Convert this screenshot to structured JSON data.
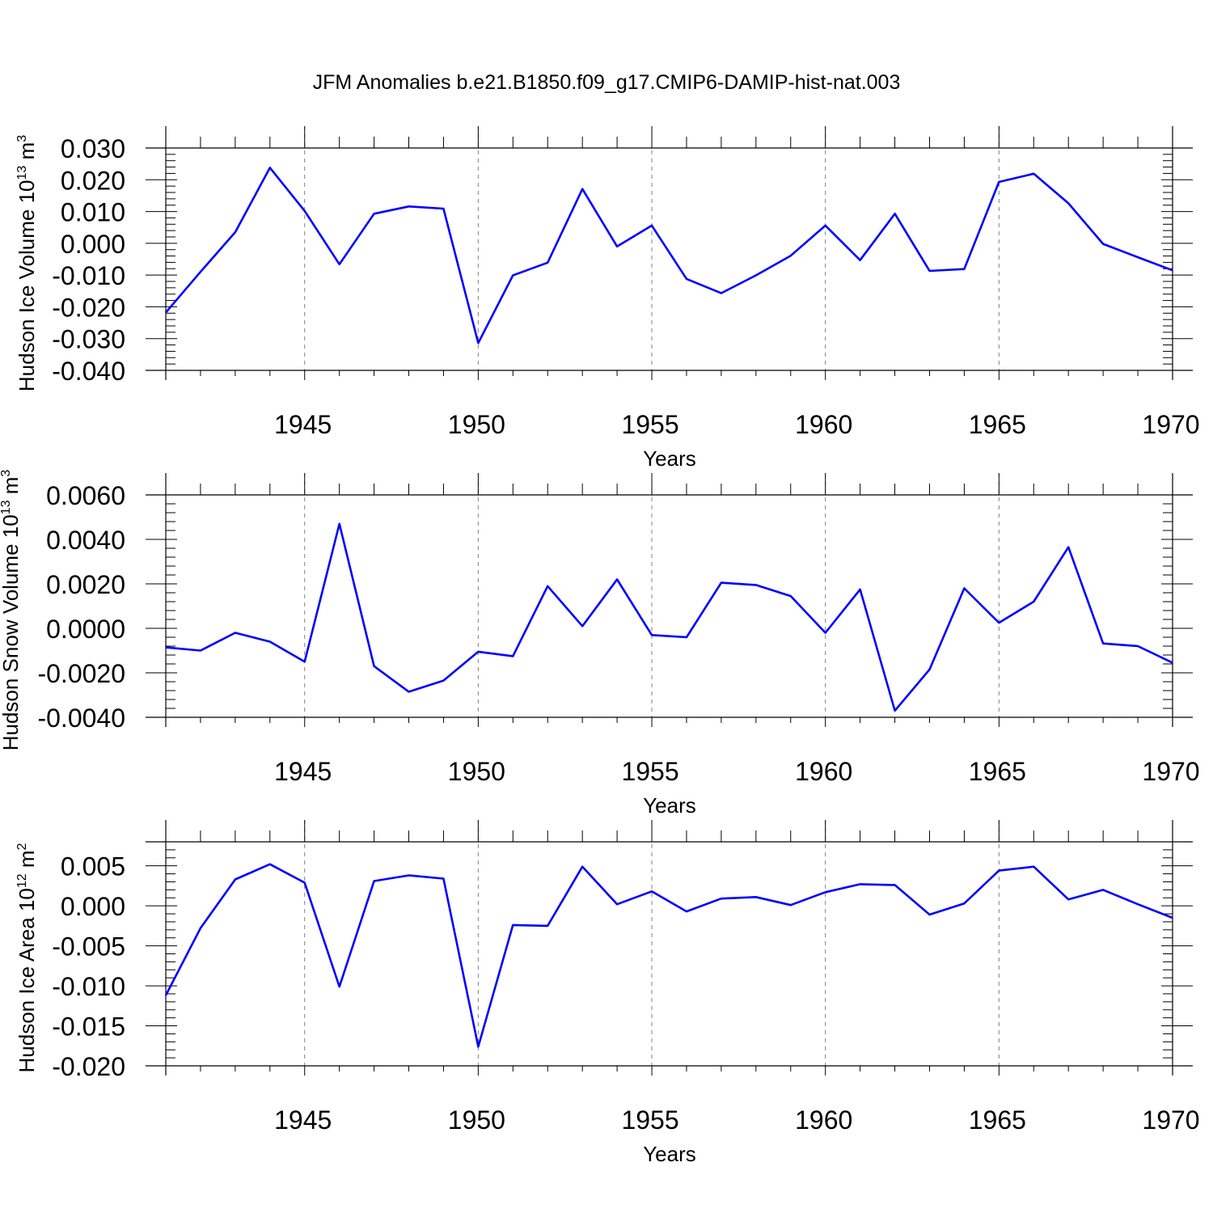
{
  "title": "JFM Anomalies b.e21.B1850.f09_g17.CMIP6-DAMIP-hist-nat.003",
  "colors": {
    "line": "#0000ff",
    "axis": "#000000",
    "grid": "#808080",
    "background": "#ffffff"
  },
  "chart_data": [
    {
      "type": "line",
      "title": "JFM Anomalies b.e21.B1850.f09_g17.CMIP6-DAMIP-hist-nat.003",
      "ylabel": "Hudson Ice Volume 10",
      "ylabel_exponent": "13",
      "ylabel_unit": " m",
      "ylabel_unit_exponent": "3",
      "xlabel": "Years",
      "xlim": [
        1941,
        1970
      ],
      "ylim": [
        -0.04,
        0.03
      ],
      "yticks": [
        -0.04,
        -0.03,
        -0.02,
        -0.01,
        0.0,
        0.01,
        0.02,
        0.03
      ],
      "ytick_labels": [
        "-0.040",
        "-0.030",
        "-0.020",
        "-0.010",
        "0.000",
        "0.010",
        "0.020",
        "0.030"
      ],
      "xticks": [
        1945,
        1950,
        1955,
        1960,
        1965,
        1970
      ],
      "xtick_labels": [
        "1945",
        "1950",
        "1955",
        "1960",
        "1965",
        "1970"
      ],
      "grid": "vertical dashed at major x ticks",
      "series": [
        {
          "name": "Hudson Ice Volume",
          "x": [
            1941,
            1942,
            1943,
            1944,
            1945,
            1946,
            1947,
            1948,
            1949,
            1950,
            1951,
            1952,
            1953,
            1954,
            1955,
            1956,
            1957,
            1958,
            1959,
            1960,
            1961,
            1962,
            1963,
            1964,
            1965,
            1966,
            1967,
            1968,
            1969,
            1970
          ],
          "values": [
            -0.0218,
            -0.009,
            0.0035,
            0.0238,
            0.0102,
            -0.0066,
            0.0093,
            0.0116,
            0.0109,
            -0.0314,
            -0.0101,
            -0.0061,
            0.0171,
            -0.001,
            0.0056,
            -0.0112,
            -0.0157,
            -0.0101,
            -0.0039,
            0.0056,
            -0.0053,
            0.0093,
            -0.0087,
            -0.0081,
            0.0193,
            0.0219,
            0.0126,
            -0.0002,
            -0.0044,
            -0.0085
          ]
        }
      ]
    },
    {
      "type": "line",
      "ylabel": "Hudson Snow Volume 10",
      "ylabel_exponent": "13",
      "ylabel_unit": " m",
      "ylabel_unit_exponent": "3",
      "xlabel": "Years",
      "xlim": [
        1941,
        1970
      ],
      "ylim": [
        -0.004,
        0.006
      ],
      "yticks": [
        -0.004,
        -0.002,
        0.0,
        0.002,
        0.004,
        0.006
      ],
      "ytick_labels": [
        "-0.0040",
        "-0.0020",
        "0.0000",
        "0.0020",
        "0.0040",
        "0.0060"
      ],
      "xticks": [
        1945,
        1950,
        1955,
        1960,
        1965,
        1970
      ],
      "xtick_labels": [
        "1945",
        "1950",
        "1955",
        "1960",
        "1965",
        "1970"
      ],
      "grid": "vertical dashed at major x ticks",
      "series": [
        {
          "name": "Hudson Snow Volume",
          "x": [
            1941,
            1942,
            1943,
            1944,
            1945,
            1946,
            1947,
            1948,
            1949,
            1950,
            1951,
            1952,
            1953,
            1954,
            1955,
            1956,
            1957,
            1958,
            1959,
            1960,
            1961,
            1962,
            1963,
            1964,
            1965,
            1966,
            1967,
            1968,
            1969,
            1970
          ],
          "values": [
            -0.00086,
            -0.001,
            -0.0002,
            -0.0006,
            -0.0015,
            0.0047,
            -0.0017,
            -0.00285,
            -0.00235,
            -0.00105,
            -0.00125,
            0.0019,
            0.0001,
            0.0022,
            -0.0003,
            -0.0004,
            0.00205,
            0.00195,
            0.00145,
            -0.0002,
            0.00175,
            -0.0037,
            -0.00185,
            0.0018,
            0.00025,
            0.0012,
            0.00365,
            -0.00068,
            -0.0008,
            -0.00155
          ]
        }
      ]
    },
    {
      "type": "line",
      "ylabel": "Hudson Ice Area 10",
      "ylabel_exponent": "12",
      "ylabel_unit": " m",
      "ylabel_unit_exponent": "2",
      "xlabel": "Years",
      "xlim": [
        1941,
        1970
      ],
      "ylim": [
        -0.02,
        0.008
      ],
      "yticks": [
        -0.02,
        -0.015,
        -0.01,
        -0.005,
        0.0,
        0.005
      ],
      "ytick_labels": [
        "-0.020",
        "-0.015",
        "-0.010",
        "-0.005",
        "0.000",
        "0.005"
      ],
      "xticks": [
        1945,
        1950,
        1955,
        1960,
        1965,
        1970
      ],
      "xtick_labels": [
        "1945",
        "1950",
        "1955",
        "1960",
        "1965",
        "1970"
      ],
      "grid": "vertical dashed at major x ticks",
      "series": [
        {
          "name": "Hudson Ice Area",
          "x": [
            1941,
            1942,
            1943,
            1944,
            1945,
            1946,
            1947,
            1948,
            1949,
            1950,
            1951,
            1952,
            1953,
            1954,
            1955,
            1956,
            1957,
            1958,
            1959,
            1960,
            1961,
            1962,
            1963,
            1964,
            1965,
            1966,
            1967,
            1968,
            1969,
            1970
          ],
          "values": [
            -0.0112,
            -0.0028,
            0.0033,
            0.0052,
            0.0029,
            -0.0101,
            0.0031,
            0.0038,
            0.0034,
            -0.0176,
            -0.0024,
            -0.0025,
            0.0049,
            0.0002,
            0.0018,
            -0.0007,
            0.0009,
            0.0011,
            0.0001,
            0.0017,
            0.0027,
            0.0026,
            -0.0011,
            0.0003,
            0.0044,
            0.0049,
            0.0008,
            0.002,
            0.0002,
            -0.0015
          ]
        }
      ]
    }
  ]
}
